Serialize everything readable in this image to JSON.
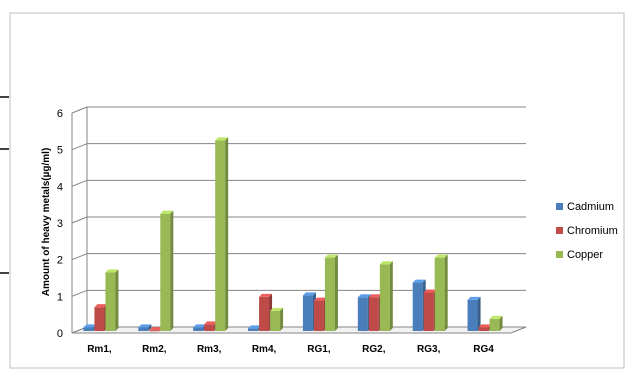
{
  "chart_data": {
    "type": "bar",
    "title": "",
    "xlabel": "",
    "ylabel": "Amount of heavy metals(µg/ml)",
    "ylim": [
      0,
      6
    ],
    "yticks": [
      "0",
      "1",
      "2",
      "3",
      "4",
      "5",
      "6"
    ],
    "grid": true,
    "legend_position": "right",
    "categories": [
      "Rm1,",
      "Rm2,",
      "Rm3,",
      "Rm4,",
      "RG1,",
      "RG2,",
      "RG3,",
      "RG4"
    ],
    "series": [
      {
        "name": "Cadmium",
        "color": "#4a7ebb",
        "values": [
          0.1,
          0.1,
          0.1,
          0.07,
          0.97,
          0.92,
          1.32,
          0.85
        ]
      },
      {
        "name": "Chromium",
        "color": "#be4b48",
        "values": [
          0.65,
          0.02,
          0.18,
          0.93,
          0.83,
          0.92,
          1.05,
          0.1
        ]
      },
      {
        "name": "Copper",
        "color": "#98b954",
        "values": [
          1.6,
          3.2,
          5.2,
          0.55,
          2.0,
          1.82,
          2.0,
          0.33
        ]
      }
    ]
  }
}
